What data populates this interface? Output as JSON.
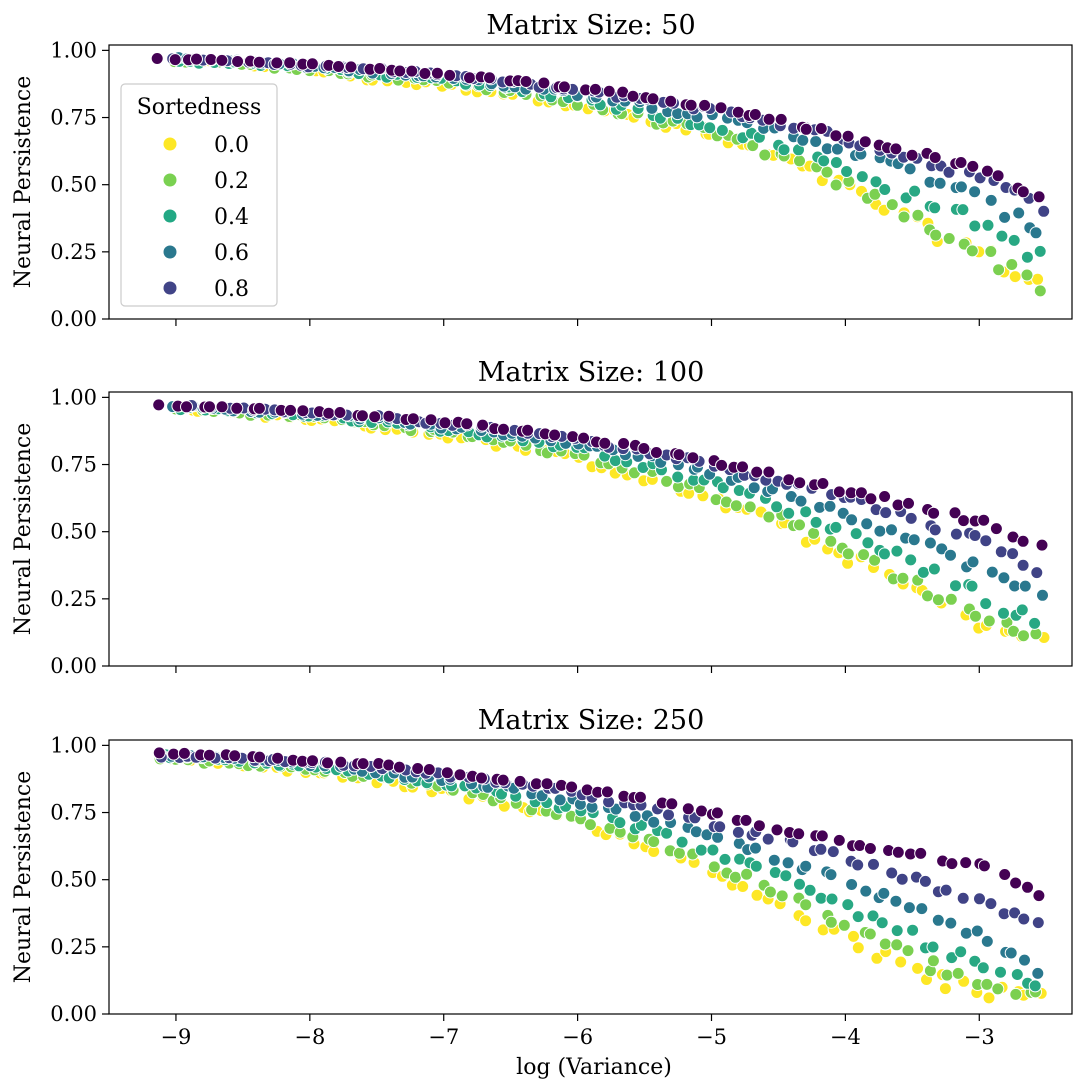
{
  "chart_data": {
    "type": "scatter",
    "xlabel": "log (Variance)",
    "ylabel": "Neural Persistence",
    "xlim": [
      -9.5,
      -2.3
    ],
    "ylim": [
      0.0,
      1.02
    ],
    "xticks": [
      -9,
      -8,
      -7,
      -6,
      -5,
      -4,
      -3
    ],
    "xtick_labels": [
      "−9",
      "−8",
      "−7",
      "−6",
      "−5",
      "−4",
      "−3"
    ],
    "yticks": [
      0.0,
      0.25,
      0.5,
      0.75,
      1.0
    ],
    "ytick_labels": [
      "0.00",
      "0.25",
      "0.50",
      "0.75",
      "1.00"
    ],
    "shared_x": true,
    "grid": false,
    "legend": {
      "title": "Sortedness",
      "placement": "upper-left",
      "subplot": 0,
      "entries": [
        {
          "label": "0.0",
          "color": "#fde725"
        },
        {
          "label": "0.2",
          "color": "#7ad151"
        },
        {
          "label": "0.4",
          "color": "#22a884"
        },
        {
          "label": "0.6",
          "color": "#2a788e"
        },
        {
          "label": "0.8",
          "color": "#414487"
        }
      ]
    },
    "hue_colormap": "viridis",
    "hue_range": [
      0.0,
      1.0
    ],
    "subplots": [
      {
        "title": "Matrix Size: 50",
        "series": [
          {
            "sortedness": 0.0,
            "x": [
              -9.0,
              -8.5,
              -8.0,
              -7.5,
              -7.0,
              -6.5,
              -6.0,
              -5.5,
              -5.0,
              -4.5,
              -4.0,
              -3.5,
              -3.0,
              -2.55
            ],
            "y": [
              0.96,
              0.95,
              0.93,
              0.89,
              0.87,
              0.84,
              0.8,
              0.74,
              0.68,
              0.6,
              0.49,
              0.36,
              0.25,
              0.13
            ]
          },
          {
            "sortedness": 0.2,
            "x": [
              -9.0,
              -8.5,
              -8.0,
              -7.5,
              -7.0,
              -6.5,
              -6.0,
              -5.5,
              -5.0,
              -4.5,
              -4.0,
              -3.5,
              -3.0,
              -2.55
            ],
            "y": [
              0.96,
              0.95,
              0.93,
              0.9,
              0.88,
              0.85,
              0.8,
              0.75,
              0.69,
              0.61,
              0.5,
              0.38,
              0.25,
              0.13
            ]
          },
          {
            "sortedness": 0.4,
            "x": [
              -9.0,
              -8.5,
              -8.0,
              -7.5,
              -7.0,
              -6.5,
              -6.0,
              -5.5,
              -5.0,
              -4.5,
              -4.0,
              -3.5,
              -3.0,
              -2.55
            ],
            "y": [
              0.96,
              0.95,
              0.94,
              0.91,
              0.89,
              0.86,
              0.82,
              0.77,
              0.72,
              0.65,
              0.56,
              0.46,
              0.36,
              0.23
            ]
          },
          {
            "sortedness": 0.6,
            "x": [
              -9.0,
              -8.5,
              -8.0,
              -7.5,
              -7.0,
              -6.5,
              -6.0,
              -5.5,
              -5.0,
              -4.5,
              -4.0,
              -3.5,
              -3.0,
              -2.55
            ],
            "y": [
              0.97,
              0.96,
              0.94,
              0.92,
              0.9,
              0.87,
              0.84,
              0.8,
              0.75,
              0.7,
              0.63,
              0.55,
              0.45,
              0.33
            ]
          },
          {
            "sortedness": 0.8,
            "x": [
              -9.0,
              -8.5,
              -8.0,
              -7.5,
              -7.0,
              -6.5,
              -6.0,
              -5.5,
              -5.0,
              -4.5,
              -4.0,
              -3.5,
              -3.0,
              -2.55
            ],
            "y": [
              0.97,
              0.96,
              0.94,
              0.93,
              0.91,
              0.88,
              0.85,
              0.82,
              0.78,
              0.73,
              0.67,
              0.6,
              0.53,
              0.42
            ]
          },
          {
            "sortedness": 1.0,
            "x": [
              -9.1,
              -8.5,
              -8.0,
              -7.5,
              -7.0,
              -6.5,
              -6.0,
              -5.5,
              -5.0,
              -4.5,
              -4.0,
              -3.5,
              -3.0,
              -2.55
            ],
            "y": [
              0.97,
              0.96,
              0.95,
              0.93,
              0.91,
              0.89,
              0.86,
              0.83,
              0.79,
              0.74,
              0.68,
              0.62,
              0.56,
              0.46
            ]
          }
        ]
      },
      {
        "title": "Matrix Size: 100",
        "series": [
          {
            "sortedness": 0.0,
            "x": [
              -9.0,
              -8.5,
              -8.0,
              -7.5,
              -7.0,
              -6.5,
              -6.0,
              -5.5,
              -5.0,
              -4.5,
              -4.0,
              -3.5,
              -3.0,
              -2.55
            ],
            "y": [
              0.96,
              0.94,
              0.92,
              0.89,
              0.86,
              0.82,
              0.77,
              0.7,
              0.62,
              0.53,
              0.41,
              0.29,
              0.17,
              0.08
            ]
          },
          {
            "sortedness": 0.2,
            "x": [
              -9.0,
              -8.5,
              -8.0,
              -7.5,
              -7.0,
              -6.5,
              -6.0,
              -5.5,
              -5.0,
              -4.5,
              -4.0,
              -3.5,
              -3.0,
              -2.55
            ],
            "y": [
              0.96,
              0.94,
              0.93,
              0.9,
              0.87,
              0.83,
              0.78,
              0.72,
              0.64,
              0.55,
              0.44,
              0.31,
              0.19,
              0.09
            ]
          },
          {
            "sortedness": 0.4,
            "x": [
              -9.0,
              -8.5,
              -8.0,
              -7.5,
              -7.0,
              -6.5,
              -6.0,
              -5.5,
              -5.0,
              -4.5,
              -4.0,
              -3.5,
              -3.0,
              -2.55
            ],
            "y": [
              0.96,
              0.95,
              0.93,
              0.91,
              0.88,
              0.85,
              0.81,
              0.75,
              0.68,
              0.6,
              0.5,
              0.39,
              0.27,
              0.15
            ]
          },
          {
            "sortedness": 0.6,
            "x": [
              -9.0,
              -8.5,
              -8.0,
              -7.5,
              -7.0,
              -6.5,
              -6.0,
              -5.5,
              -5.0,
              -4.5,
              -4.0,
              -3.5,
              -3.0,
              -2.55
            ],
            "y": [
              0.97,
              0.95,
              0.94,
              0.92,
              0.89,
              0.86,
              0.83,
              0.78,
              0.72,
              0.65,
              0.57,
              0.47,
              0.37,
              0.25
            ]
          },
          {
            "sortedness": 0.8,
            "x": [
              -9.0,
              -8.5,
              -8.0,
              -7.5,
              -7.0,
              -6.5,
              -6.0,
              -5.5,
              -5.0,
              -4.5,
              -4.0,
              -3.5,
              -3.0,
              -2.55
            ],
            "y": [
              0.97,
              0.96,
              0.94,
              0.93,
              0.9,
              0.88,
              0.84,
              0.8,
              0.75,
              0.69,
              0.63,
              0.55,
              0.47,
              0.36
            ]
          },
          {
            "sortedness": 1.0,
            "x": [
              -9.1,
              -8.5,
              -8.0,
              -7.5,
              -7.0,
              -6.5,
              -6.0,
              -5.5,
              -5.0,
              -4.5,
              -4.0,
              -3.5,
              -3.0,
              -2.55
            ],
            "y": [
              0.97,
              0.96,
              0.95,
              0.93,
              0.91,
              0.88,
              0.85,
              0.81,
              0.76,
              0.71,
              0.65,
              0.6,
              0.54,
              0.44
            ]
          }
        ]
      },
      {
        "title": "Matrix Size: 250",
        "series": [
          {
            "sortedness": 0.0,
            "x": [
              -9.1,
              -8.5,
              -8.0,
              -7.5,
              -7.0,
              -6.5,
              -6.0,
              -5.5,
              -5.0,
              -4.5,
              -4.0,
              -3.5,
              -3.0,
              -2.55
            ],
            "y": [
              0.95,
              0.93,
              0.9,
              0.87,
              0.83,
              0.78,
              0.72,
              0.63,
              0.53,
              0.41,
              0.28,
              0.16,
              0.08,
              0.05
            ]
          },
          {
            "sortedness": 0.2,
            "x": [
              -9.1,
              -8.5,
              -8.0,
              -7.5,
              -7.0,
              -6.5,
              -6.0,
              -5.5,
              -5.0,
              -4.5,
              -4.0,
              -3.5,
              -3.0,
              -2.55
            ],
            "y": [
              0.95,
              0.93,
              0.91,
              0.88,
              0.84,
              0.79,
              0.73,
              0.65,
              0.56,
              0.45,
              0.33,
              0.21,
              0.11,
              0.06
            ]
          },
          {
            "sortedness": 0.4,
            "x": [
              -9.1,
              -8.5,
              -8.0,
              -7.5,
              -7.0,
              -6.5,
              -6.0,
              -5.5,
              -5.0,
              -4.5,
              -4.0,
              -3.5,
              -3.0,
              -2.55
            ],
            "y": [
              0.96,
              0.94,
              0.92,
              0.89,
              0.86,
              0.82,
              0.76,
              0.69,
              0.61,
              0.51,
              0.4,
              0.29,
              0.18,
              0.09
            ]
          },
          {
            "sortedness": 0.6,
            "x": [
              -9.1,
              -8.5,
              -8.0,
              -7.5,
              -7.0,
              -6.5,
              -6.0,
              -5.5,
              -5.0,
              -4.5,
              -4.0,
              -3.5,
              -3.0,
              -2.55
            ],
            "y": [
              0.96,
              0.95,
              0.93,
              0.9,
              0.87,
              0.84,
              0.79,
              0.73,
              0.66,
              0.58,
              0.49,
              0.39,
              0.29,
              0.17
            ]
          },
          {
            "sortedness": 0.8,
            "x": [
              -9.1,
              -8.5,
              -8.0,
              -7.5,
              -7.0,
              -6.5,
              -6.0,
              -5.5,
              -5.0,
              -4.5,
              -4.0,
              -3.5,
              -3.0,
              -2.55
            ],
            "y": [
              0.96,
              0.95,
              0.94,
              0.92,
              0.89,
              0.86,
              0.82,
              0.77,
              0.71,
              0.65,
              0.58,
              0.5,
              0.42,
              0.32
            ]
          },
          {
            "sortedness": 1.0,
            "x": [
              -9.1,
              -8.5,
              -8.0,
              -7.5,
              -7.0,
              -6.5,
              -6.0,
              -5.5,
              -5.0,
              -4.5,
              -4.0,
              -3.5,
              -3.0,
              -2.55
            ],
            "y": [
              0.97,
              0.96,
              0.94,
              0.93,
              0.9,
              0.87,
              0.84,
              0.8,
              0.75,
              0.69,
              0.64,
              0.6,
              0.55,
              0.45
            ]
          }
        ]
      }
    ]
  }
}
